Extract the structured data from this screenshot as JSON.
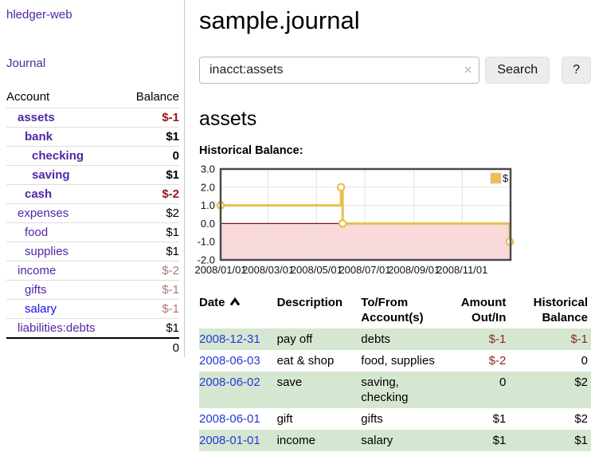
{
  "colors": {
    "accent_purple": "#5126a5",
    "link_blue": "#2838d8",
    "negative_strong": "#961919",
    "negative_soft": "#b87272",
    "table_negative": "#8f2626",
    "stripe_green": "#d5e7d0",
    "chart_gold": "#e9bf4d",
    "chart_negative_zone": "#f9d9d9",
    "chart_zero_line": "#7d0f0f"
  },
  "sidebar": {
    "brand": "hledger-web",
    "journal_label": "Journal",
    "accounts_table": {
      "headers": {
        "account": "Account",
        "balance": "Balance"
      },
      "rows": [
        {
          "name": "assets",
          "balance": "$-1",
          "level": 1,
          "bold": true,
          "balance_color": "negative-strong"
        },
        {
          "name": "bank",
          "balance": "$1",
          "level": 2,
          "bold": true
        },
        {
          "name": "checking",
          "balance": "0",
          "level": 3,
          "bold": true
        },
        {
          "name": "saving",
          "balance": "$1",
          "level": 3,
          "bold": true
        },
        {
          "name": "cash",
          "balance": "$-2",
          "level": 2,
          "bold": true,
          "balance_color": "negative-strong"
        },
        {
          "name": "expenses",
          "balance": "$2",
          "level": 1
        },
        {
          "name": "food",
          "balance": "$1",
          "level": 2
        },
        {
          "name": "supplies",
          "balance": "$1",
          "level": 2
        },
        {
          "name": "income",
          "balance": "$-2",
          "level": 1,
          "balance_color": "negative-soft"
        },
        {
          "name": "gifts",
          "balance": "$-1",
          "level": 2,
          "balance_color": "negative-soft"
        },
        {
          "name": "salary",
          "balance": "$-1",
          "level": 2,
          "balance_color": "negative-soft",
          "link_color": "blue"
        },
        {
          "name": "liabilities:debts",
          "balance": "$1",
          "level": 1
        }
      ],
      "total": "0"
    }
  },
  "header": {
    "title": "sample.journal"
  },
  "search": {
    "value": "inacct:assets",
    "clear_icon": "×",
    "button_label": "Search",
    "help_label": "?"
  },
  "account_page": {
    "title": "assets",
    "chart_label": "Historical Balance:"
  },
  "chart_data": {
    "type": "line",
    "step": true,
    "title": "Historical Balance",
    "ylim": [
      -2,
      3
    ],
    "yticks": [
      3.0,
      2.0,
      1.0,
      0.0,
      -1.0,
      -2.0
    ],
    "x_domain": [
      "2008-01-01",
      "2009-01-01"
    ],
    "xticks": [
      {
        "label": "2008/01/01",
        "date": "2008-01-01"
      },
      {
        "label": "2008/03/01",
        "date": "2008-03-01"
      },
      {
        "label": "2008/05/01",
        "date": "2008-05-01"
      },
      {
        "label": "2008/07/01",
        "date": "2008-07-01"
      },
      {
        "label": "2008/09/01",
        "date": "2008-09-01"
      },
      {
        "label": "2008/11/01",
        "date": "2008-11-01"
      }
    ],
    "series": [
      {
        "name": "$",
        "color": "#e9bf4d",
        "points": [
          [
            "2008-01-01",
            1
          ],
          [
            "2008-06-01",
            2
          ],
          [
            "2008-06-03",
            0
          ],
          [
            "2008-12-31",
            -1
          ]
        ]
      }
    ],
    "legend_position": "top-right",
    "grid": true,
    "negative_fill": "#f9d9d9",
    "zero_line_color": "#7d0f0f"
  },
  "register_table": {
    "headers": {
      "date": "Date",
      "description": "Description",
      "tofrom_line1": "To/From",
      "tofrom_line2": "Account(s)",
      "amount_line1": "Amount",
      "amount_line2": "Out/In",
      "balance_line1": "Historical",
      "balance_line2": "Balance"
    },
    "rows": [
      {
        "date": "2008-12-31",
        "description": "pay off",
        "accounts": "debts",
        "amount": "$-1",
        "balance": "$-1"
      },
      {
        "date": "2008-06-03",
        "description": "eat & shop",
        "accounts": "food, supplies",
        "amount": "$-2",
        "balance": "0"
      },
      {
        "date": "2008-06-02",
        "description": "save",
        "accounts": "saving, checking",
        "amount": "0",
        "balance": "$2"
      },
      {
        "date": "2008-06-01",
        "description": "gift",
        "accounts": "gifts",
        "amount": "$1",
        "balance": "$2"
      },
      {
        "date": "2008-01-01",
        "description": "income",
        "accounts": "salary",
        "amount": "$1",
        "balance": "$1"
      }
    ]
  }
}
